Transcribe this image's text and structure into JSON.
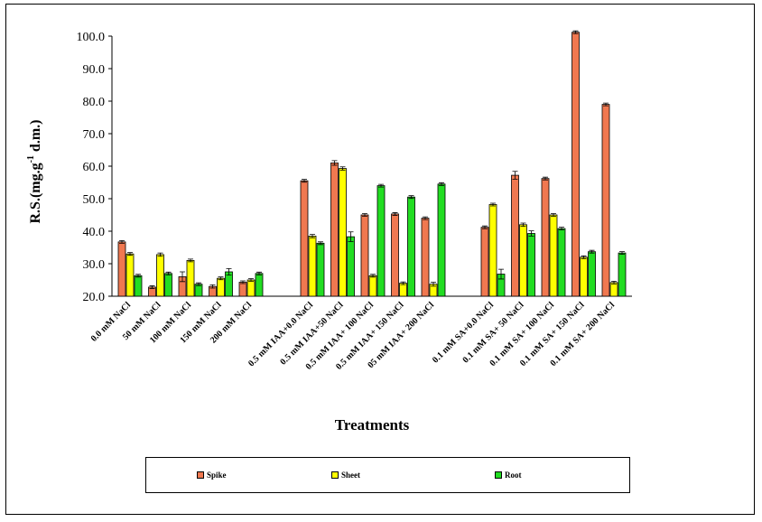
{
  "chart_data": {
    "type": "bar",
    "title": "",
    "xlabel": "Treatments",
    "ylabel": "R.S.(mg.g-1 d.m.)",
    "ylabel_main": "R.S.(mg.g",
    "ylabel_sup": "-1",
    "ylabel_tail": " d.m.)",
    "ylim": [
      20,
      100
    ],
    "yticks": [
      "20.0",
      "30.0",
      "40.0",
      "50.0",
      "60.0",
      "70.0",
      "80.0",
      "90.0",
      "100.0"
    ],
    "ytick_values": [
      20,
      30,
      40,
      50,
      60,
      70,
      80,
      90,
      100
    ],
    "groups": [
      {
        "categories": [
          "0.0 mM NaCl",
          "50 mM NaCl",
          "100 mM NaCl",
          "150 mM NaCl",
          "200 mM NaCl"
        ]
      },
      {
        "categories": [
          "0.5 mM IAA+0.0 NaCl",
          "0.5 mM IAA+50 NaCl",
          "0.5 mM IAA+ 100 NaCl",
          "0.5 mM IAA+ 150 NaCl",
          "05 mM IAA+ 200 NaCl"
        ]
      },
      {
        "categories": [
          "0.1 mM SA+0.0 NaCl",
          "0.1 mM SA+ 50 NaCl",
          "0.1 mM SA+ 100 NaCl",
          "0.1 mM SA+ 150 NaCl",
          "0.1 mM SA+ 200 NaCl"
        ]
      }
    ],
    "series": [
      {
        "name": "Spike",
        "color": "#f07850",
        "values": [
          36.7,
          22.8,
          26.0,
          23.0,
          24.3,
          55.5,
          61.0,
          45.0,
          45.3,
          44.0,
          41.2,
          57.2,
          56.2,
          101.2,
          79.0
        ],
        "errors": [
          0,
          0.3,
          1.5,
          0.5,
          0,
          0,
          0.7,
          0,
          0,
          0,
          0,
          1.2,
          0,
          0,
          0
        ]
      },
      {
        "name": "Sheet",
        "color": "#ffff00",
        "values": [
          33.0,
          32.8,
          31.0,
          25.5,
          25.0,
          38.5,
          59.3,
          26.3,
          24.0,
          23.7,
          48.2,
          42.0,
          45.0,
          32.0,
          24.2
        ],
        "errors": [
          0,
          0.5,
          0,
          0,
          0.4,
          0.5,
          0.5,
          0.4,
          0,
          0.6,
          0.3,
          0.5,
          0.3,
          0,
          0
        ]
      },
      {
        "name": "Root",
        "color": "#22dd22",
        "values": [
          26.3,
          27.0,
          23.7,
          27.5,
          27.0,
          36.3,
          38.3,
          54.0,
          50.5,
          54.5,
          26.8,
          39.3,
          40.8,
          33.7,
          33.3
        ],
        "errors": [
          0,
          0,
          0,
          1.0,
          0,
          0,
          1.5,
          0,
          0,
          0,
          1.5,
          0.8,
          0,
          0,
          0
        ]
      }
    ],
    "legend": [
      "Spike",
      "Sheet",
      "Root"
    ],
    "legend_position": "bottom",
    "grid": false
  }
}
